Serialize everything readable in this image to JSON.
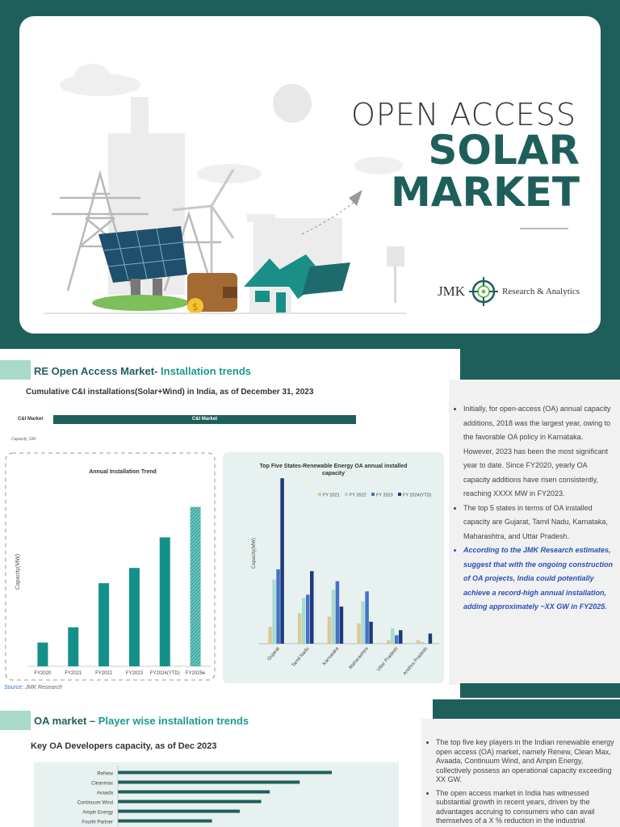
{
  "hero": {
    "title_line1": "OPEN ACCESS",
    "title_line2": "SOLAR",
    "title_line3": "MARKET",
    "logo_name": "JMK",
    "logo_tagline": "Research & Analytics"
  },
  "section1": {
    "title_prefix": "RE Open Access Market-",
    "title_accent": " Installation trends",
    "subtitle": "Cumulative C&I installations(Solar+Wind) in India, as of December 31, 2023",
    "ci_label": "C&I Market",
    "ci_bar_label": "C&I Market",
    "capacity_note": "Capacity, GW",
    "source_prefix": "Source:",
    "source_text": " JMK Research",
    "bullets": [
      "Initially, for open-access (OA) annual capacity additions, 2018 was the largest year, owing to the favorable OA policy in Karnataka. However, 2023 has been the most significant year to date. Since FY2020, yearly OA capacity additions have risen consistently, reaching XXXX MW in FY2023.",
      "The top 5 states in terms of OA installed capacity are Gujarat, Tamil Nadu, Karnataka, Maharashtra, and Uttar Pradesh."
    ],
    "bullet_emphasis": "According to the JMK Research estimates, suggest that with the ongoing construction of OA projects, India could potentially achieve a record-high annual installation, adding approximately ~XX GW in FY2025."
  },
  "section2": {
    "title_prefix": "OA market – ",
    "title_accent": "Player wise installation trends",
    "subtitle": "Key OA Developers capacity, as of Dec 2023",
    "bullets": [
      "The top five key players in the Indian renewable energy open access (OA) market, namely Renew, Clean Max, Avaada, Continuum Wind, and Ampin Energy, collectively possess an operational capacity exceeding XX GW.",
      "The open access market in India has witnessed substantial growth in recent years, driven by the advantages accruing to consumers who can avail themselves of a X % reduction in the industrial"
    ]
  },
  "colors": {
    "brand": "#1f5f5b",
    "accent": "#1a9a8e",
    "bar_teal": "#14908a",
    "fy2021": "#d9c89a",
    "fy2022": "#a9dcd0",
    "fy2023": "#4472c4",
    "fy2024": "#1f3a7a"
  },
  "chart_data": [
    {
      "type": "bar",
      "title": "Annual Installation Trend",
      "ylabel": "Capacity(MW)",
      "categories": [
        "FY2020",
        "FY2021",
        "FY2022",
        "FY2023",
        "FY2024(YTD)",
        "FY2025e"
      ],
      "values": [
        1.4,
        2.3,
        4.9,
        5.8,
        7.6,
        9.4
      ],
      "ylim": [
        0,
        10
      ]
    },
    {
      "type": "bar",
      "title": "Top Five States-Renewable Energy OA annual installed capacity",
      "ylabel": "Capacity(MW)",
      "categories": [
        "Gujarat",
        "Tamil Nadu",
        "Karnataka",
        "Maharashtra",
        "Uttar Pradesh",
        "Andhra Pradesh"
      ],
      "series": [
        {
          "name": "FY 2021",
          "values": [
            1.0,
            1.8,
            1.6,
            1.2,
            0.2,
            0.2
          ]
        },
        {
          "name": "FY 2022",
          "values": [
            3.8,
            2.7,
            3.2,
            2.5,
            0.9,
            0.1
          ]
        },
        {
          "name": "FY 2023",
          "values": [
            4.4,
            2.9,
            3.7,
            3.1,
            0.5,
            0.0
          ]
        },
        {
          "name": "FY 2024(YTD)",
          "values": [
            9.8,
            4.3,
            2.2,
            1.3,
            0.8,
            0.6
          ]
        }
      ],
      "ylim": [
        0,
        10
      ],
      "legend": "top-right"
    },
    {
      "type": "bar",
      "title": "Key OA Developers capacity, as of Dec 2023",
      "categories": [
        "ReNew",
        "Cleanmax",
        "Avaada",
        "Continuum Wind",
        "Ampin Energy",
        "Fourth Partner"
      ],
      "values": [
        100,
        85,
        71,
        67,
        57,
        44
      ],
      "orientation": "horizontal"
    }
  ]
}
